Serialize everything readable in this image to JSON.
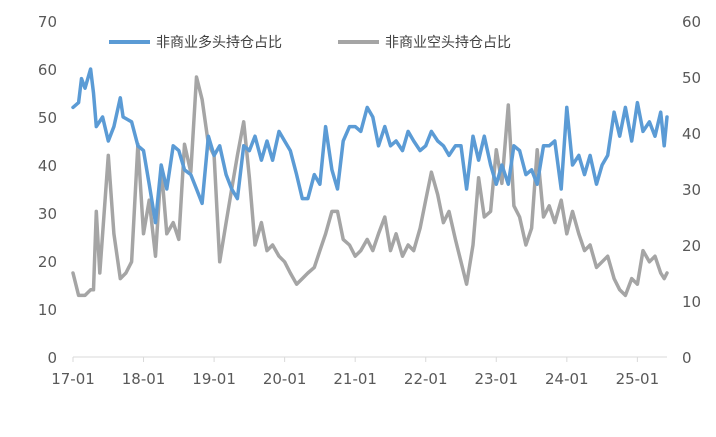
{
  "chart_data": {
    "type": "line",
    "title": "",
    "xlabel": "",
    "ylabel": "",
    "y2label": "",
    "legend_position": "top",
    "grid": false,
    "ylim": [
      0,
      70
    ],
    "y2lim": [
      0,
      60
    ],
    "y_ticks": [
      "0",
      "10",
      "20",
      "30",
      "40",
      "50",
      "60",
      "70"
    ],
    "y2_ticks": [
      "0",
      "10",
      "20",
      "30",
      "40",
      "50",
      "60"
    ],
    "x_range": [
      2017.0,
      2025.42
    ],
    "x_ticks": [
      {
        "value": 2017,
        "label": "17-01"
      },
      {
        "value": 2018,
        "label": "18-01"
      },
      {
        "value": 2019,
        "label": "19-01"
      },
      {
        "value": 2020,
        "label": "20-01"
      },
      {
        "value": 2021,
        "label": "21-01"
      },
      {
        "value": 2022,
        "label": "22-01"
      },
      {
        "value": 2023,
        "label": "23-01"
      },
      {
        "value": 2024,
        "label": "24-01"
      },
      {
        "value": 2025,
        "label": "25-01"
      }
    ],
    "series": [
      {
        "name": "非商业多头持仓占比",
        "axis": "left",
        "color": "#5B9BD5",
        "points": [
          [
            2017.0,
            52
          ],
          [
            2017.08,
            53
          ],
          [
            2017.12,
            58
          ],
          [
            2017.17,
            56
          ],
          [
            2017.25,
            60
          ],
          [
            2017.29,
            55
          ],
          [
            2017.33,
            48
          ],
          [
            2017.42,
            50
          ],
          [
            2017.5,
            45
          ],
          [
            2017.58,
            48
          ],
          [
            2017.67,
            54
          ],
          [
            2017.71,
            50
          ],
          [
            2017.83,
            49
          ],
          [
            2017.92,
            44
          ],
          [
            2018.0,
            43
          ],
          [
            2018.08,
            36
          ],
          [
            2018.17,
            28
          ],
          [
            2018.25,
            40
          ],
          [
            2018.33,
            35
          ],
          [
            2018.42,
            44
          ],
          [
            2018.5,
            43
          ],
          [
            2018.58,
            39
          ],
          [
            2018.67,
            38
          ],
          [
            2018.75,
            35
          ],
          [
            2018.83,
            32
          ],
          [
            2018.92,
            46
          ],
          [
            2019.0,
            42
          ],
          [
            2019.08,
            44
          ],
          [
            2019.17,
            38
          ],
          [
            2019.25,
            35
          ],
          [
            2019.33,
            33
          ],
          [
            2019.42,
            44
          ],
          [
            2019.5,
            43
          ],
          [
            2019.58,
            46
          ],
          [
            2019.67,
            41
          ],
          [
            2019.75,
            45
          ],
          [
            2019.83,
            41
          ],
          [
            2019.92,
            47
          ],
          [
            2020.0,
            45
          ],
          [
            2020.08,
            43
          ],
          [
            2020.17,
            38
          ],
          [
            2020.25,
            33
          ],
          [
            2020.33,
            33
          ],
          [
            2020.42,
            38
          ],
          [
            2020.5,
            36
          ],
          [
            2020.58,
            48
          ],
          [
            2020.67,
            39
          ],
          [
            2020.75,
            35
          ],
          [
            2020.83,
            45
          ],
          [
            2020.92,
            48
          ],
          [
            2021.0,
            48
          ],
          [
            2021.08,
            47
          ],
          [
            2021.17,
            52
          ],
          [
            2021.25,
            50
          ],
          [
            2021.33,
            44
          ],
          [
            2021.42,
            48
          ],
          [
            2021.5,
            44
          ],
          [
            2021.58,
            45
          ],
          [
            2021.67,
            43
          ],
          [
            2021.75,
            47
          ],
          [
            2021.83,
            45
          ],
          [
            2021.92,
            43
          ],
          [
            2022.0,
            44
          ],
          [
            2022.08,
            47
          ],
          [
            2022.17,
            45
          ],
          [
            2022.25,
            44
          ],
          [
            2022.33,
            42
          ],
          [
            2022.42,
            44
          ],
          [
            2022.5,
            44
          ],
          [
            2022.58,
            35
          ],
          [
            2022.67,
            46
          ],
          [
            2022.75,
            41
          ],
          [
            2022.83,
            46
          ],
          [
            2022.92,
            40
          ],
          [
            2023.0,
            36
          ],
          [
            2023.08,
            40
          ],
          [
            2023.17,
            36
          ],
          [
            2023.25,
            44
          ],
          [
            2023.33,
            43
          ],
          [
            2023.42,
            38
          ],
          [
            2023.5,
            39
          ],
          [
            2023.58,
            36
          ],
          [
            2023.67,
            44
          ],
          [
            2023.75,
            44
          ],
          [
            2023.83,
            45
          ],
          [
            2023.92,
            35
          ],
          [
            2024.0,
            52
          ],
          [
            2024.08,
            40
          ],
          [
            2024.17,
            42
          ],
          [
            2024.25,
            38
          ],
          [
            2024.33,
            42
          ],
          [
            2024.42,
            36
          ],
          [
            2024.5,
            40
          ],
          [
            2024.58,
            42
          ],
          [
            2024.67,
            51
          ],
          [
            2024.75,
            46
          ],
          [
            2024.83,
            52
          ],
          [
            2024.92,
            45
          ],
          [
            2025.0,
            53
          ],
          [
            2025.08,
            47
          ],
          [
            2025.17,
            49
          ],
          [
            2025.25,
            46
          ],
          [
            2025.33,
            51
          ],
          [
            2025.38,
            44
          ],
          [
            2025.42,
            50
          ]
        ]
      },
      {
        "name": "非商业空头持仓占比",
        "axis": "right",
        "color": "#A5A5A5",
        "points": [
          [
            2017.0,
            15
          ],
          [
            2017.08,
            11
          ],
          [
            2017.17,
            11
          ],
          [
            2017.25,
            12
          ],
          [
            2017.29,
            12
          ],
          [
            2017.33,
            26
          ],
          [
            2017.38,
            15
          ],
          [
            2017.5,
            36
          ],
          [
            2017.58,
            22
          ],
          [
            2017.67,
            14
          ],
          [
            2017.75,
            15
          ],
          [
            2017.83,
            17
          ],
          [
            2017.92,
            38
          ],
          [
            2018.0,
            22
          ],
          [
            2018.08,
            28
          ],
          [
            2018.17,
            18
          ],
          [
            2018.25,
            34
          ],
          [
            2018.33,
            22
          ],
          [
            2018.42,
            24
          ],
          [
            2018.5,
            21
          ],
          [
            2018.58,
            38
          ],
          [
            2018.67,
            33
          ],
          [
            2018.75,
            50
          ],
          [
            2018.83,
            46
          ],
          [
            2018.92,
            38
          ],
          [
            2019.0,
            36
          ],
          [
            2019.08,
            17
          ],
          [
            2019.17,
            24
          ],
          [
            2019.25,
            30
          ],
          [
            2019.33,
            36
          ],
          [
            2019.42,
            42
          ],
          [
            2019.5,
            32
          ],
          [
            2019.58,
            20
          ],
          [
            2019.67,
            24
          ],
          [
            2019.75,
            19
          ],
          [
            2019.83,
            20
          ],
          [
            2019.92,
            18
          ],
          [
            2020.0,
            17
          ],
          [
            2020.08,
            15
          ],
          [
            2020.17,
            13
          ],
          [
            2020.25,
            14
          ],
          [
            2020.33,
            15
          ],
          [
            2020.42,
            16
          ],
          [
            2020.5,
            19
          ],
          [
            2020.58,
            22
          ],
          [
            2020.67,
            26
          ],
          [
            2020.75,
            26
          ],
          [
            2020.83,
            21
          ],
          [
            2020.92,
            20
          ],
          [
            2021.0,
            18
          ],
          [
            2021.08,
            19
          ],
          [
            2021.17,
            21
          ],
          [
            2021.25,
            19
          ],
          [
            2021.33,
            22
          ],
          [
            2021.42,
            25
          ],
          [
            2021.5,
            19
          ],
          [
            2021.58,
            22
          ],
          [
            2021.67,
            18
          ],
          [
            2021.75,
            20
          ],
          [
            2021.83,
            19
          ],
          [
            2021.92,
            23
          ],
          [
            2022.0,
            28
          ],
          [
            2022.08,
            33
          ],
          [
            2022.17,
            29
          ],
          [
            2022.25,
            24
          ],
          [
            2022.33,
            26
          ],
          [
            2022.42,
            21
          ],
          [
            2022.5,
            17
          ],
          [
            2022.58,
            13
          ],
          [
            2022.67,
            20
          ],
          [
            2022.75,
            32
          ],
          [
            2022.83,
            25
          ],
          [
            2022.92,
            26
          ],
          [
            2023.0,
            37
          ],
          [
            2023.08,
            31
          ],
          [
            2023.17,
            45
          ],
          [
            2023.25,
            27
          ],
          [
            2023.33,
            25
          ],
          [
            2023.42,
            20
          ],
          [
            2023.5,
            23
          ],
          [
            2023.58,
            37
          ],
          [
            2023.67,
            25
          ],
          [
            2023.75,
            27
          ],
          [
            2023.83,
            24
          ],
          [
            2023.92,
            28
          ],
          [
            2024.0,
            22
          ],
          [
            2024.08,
            26
          ],
          [
            2024.17,
            22
          ],
          [
            2024.25,
            19
          ],
          [
            2024.33,
            20
          ],
          [
            2024.42,
            16
          ],
          [
            2024.5,
            17
          ],
          [
            2024.58,
            18
          ],
          [
            2024.67,
            14
          ],
          [
            2024.75,
            12
          ],
          [
            2024.83,
            11
          ],
          [
            2024.92,
            14
          ],
          [
            2025.0,
            13
          ],
          [
            2025.08,
            19
          ],
          [
            2025.17,
            17
          ],
          [
            2025.25,
            18
          ],
          [
            2025.33,
            15
          ],
          [
            2025.38,
            14
          ],
          [
            2025.42,
            15
          ]
        ]
      }
    ]
  }
}
